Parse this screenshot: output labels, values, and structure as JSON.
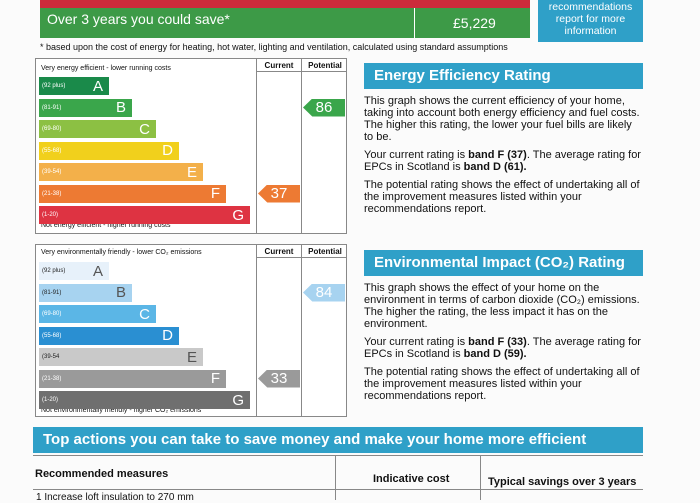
{
  "savings": {
    "label": "Over 3 years you could save*",
    "value": "£5,229",
    "recommendations_box": "recommendations report for more information",
    "footnote": "* based upon the cost of energy for heating, hot water, lighting and ventilation, calculated using standard assumptions"
  },
  "energy_graph": {
    "header_current": "Current",
    "header_potential": "Potential",
    "top_text": "Very energy efficient - lower running costs",
    "bottom_text": "Not energy efficient - higher running costs",
    "bands": [
      {
        "range": "(92 plus)",
        "letter": "A",
        "color": "#1a8a4a"
      },
      {
        "range": "(81-91)",
        "letter": "B",
        "color": "#3aa64b"
      },
      {
        "range": "(69-80)",
        "letter": "C",
        "color": "#8cc043"
      },
      {
        "range": "(55-68)",
        "letter": "D",
        "color": "#f1d01c"
      },
      {
        "range": "(39-54)",
        "letter": "E",
        "color": "#f3b04a"
      },
      {
        "range": "(21-38)",
        "letter": "F",
        "color": "#ed7a33"
      },
      {
        "range": "(1-20)",
        "letter": "G",
        "color": "#de3342"
      }
    ],
    "current": "37",
    "current_color": "#ed7a33",
    "potential": "86",
    "potential_color": "#3aa64b"
  },
  "co2_graph": {
    "header_current": "Current",
    "header_potential": "Potential",
    "top_text": "Very environmentally friendly - lower CO₂ emissions",
    "bottom_text": "Not environmentally friendly - higher CO₂ emissions",
    "bands": [
      {
        "range": "(92 plus)",
        "letter": "A",
        "color": "#e7f1fa",
        "dark": true
      },
      {
        "range": "(81-91)",
        "letter": "B",
        "color": "#a7d3f0",
        "dark": true
      },
      {
        "range": "(69-80)",
        "letter": "C",
        "color": "#5bb6e6",
        "dark": false
      },
      {
        "range": "(55-68)",
        "letter": "D",
        "color": "#2a8fd2",
        "dark": false
      },
      {
        "range": "(39-54",
        "letter": "E",
        "color": "#c9c9c9",
        "dark": true
      },
      {
        "range": "(21-38)",
        "letter": "F",
        "color": "#9a9a9a",
        "dark": false
      },
      {
        "range": "(1-20)",
        "letter": "G",
        "color": "#6f6f6f",
        "dark": false
      }
    ],
    "current": "33",
    "current_color": "#9a9a9a",
    "potential": "84",
    "potential_color": "#a7d3f0"
  },
  "energy_panel": {
    "title": "Energy Efficiency Rating",
    "para1": "This graph shows the current efficiency of your home, taking into account both energy efficiency and fuel costs. The higher this rating, the lower your fuel bills are likely to be.",
    "para2_a": "Your current rating is ",
    "para2_b": "band F (37)",
    "para2_c": ". The average rating for EPCs in Scotland is ",
    "para2_d": "band D (61).",
    "para3": "The potential rating shows the effect of undertaking all of the improvement measures listed within your recommendations report."
  },
  "co2_panel": {
    "title": "Environmental Impact (CO₂) Rating",
    "para1": "This graph shows the effect of your home on the environment in terms of carbon dioxide (CO₂) emissions. The higher the rating, the less impact it has on the environment.",
    "para2_a": "Your current rating is ",
    "para2_b": "band F (33)",
    "para2_c": ". The average rating for EPCs in Scotland is ",
    "para2_d": "band D (59).",
    "para3": "The potential rating shows the effect of undertaking all of the improvement measures listed within your recommendations report."
  },
  "actions": {
    "title": "Top actions you can take to save money and make your home more efficient",
    "col_measures": "Recommended measures",
    "col_cost": "Indicative cost",
    "col_savings": "Typical savings over 3 years",
    "row1": "1 Increase loft insulation to 270 mm"
  }
}
